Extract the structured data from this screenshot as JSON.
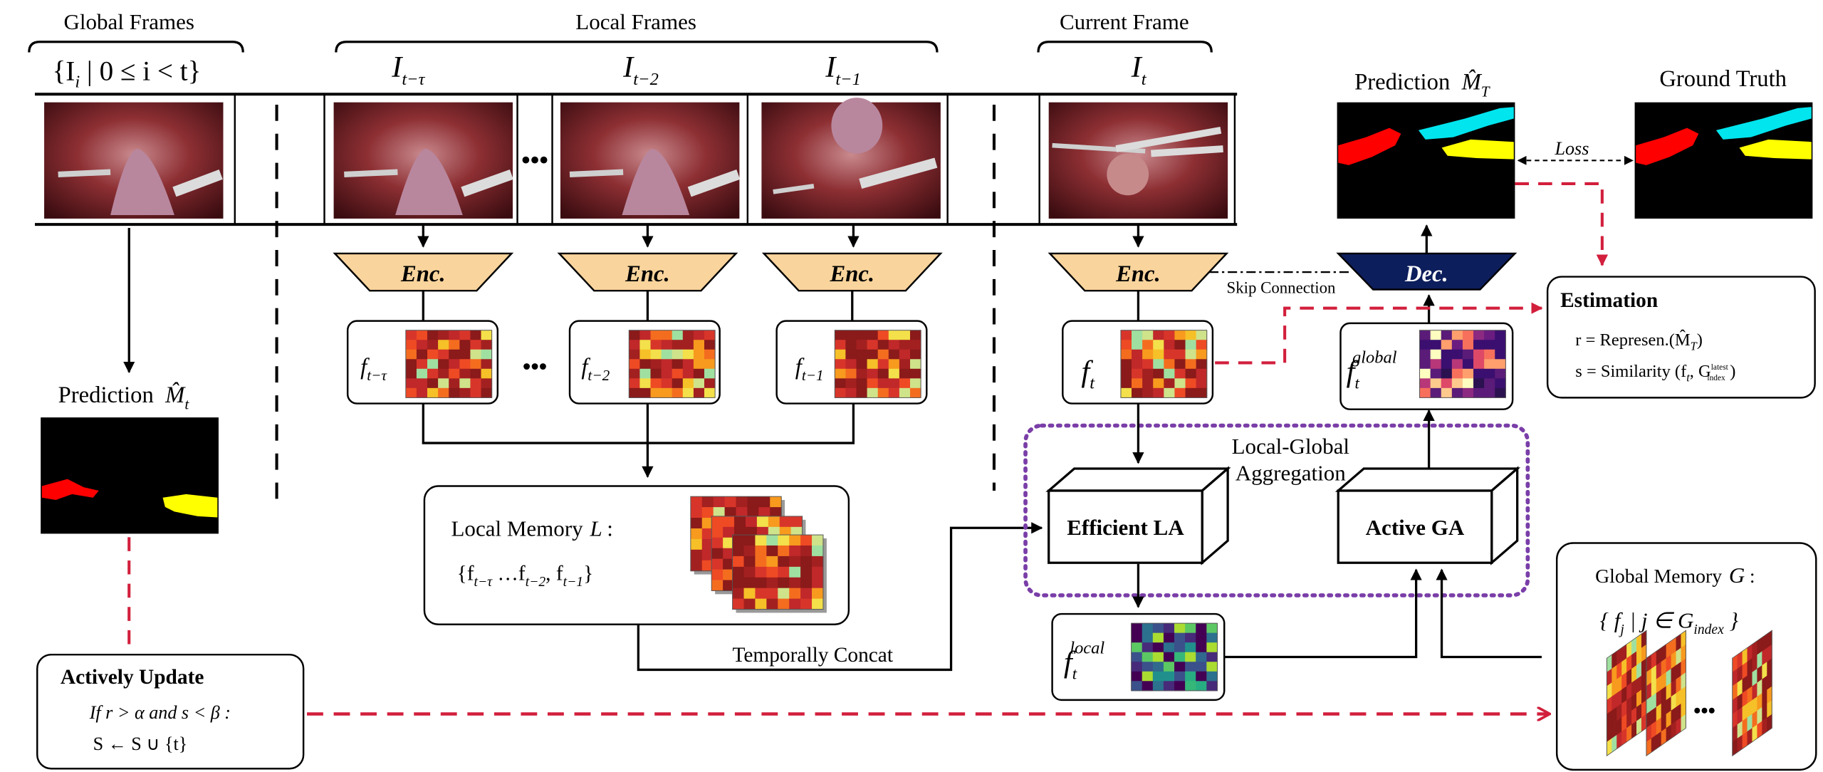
{
  "headers": {
    "global": "Global Frames",
    "local": "Local Frames",
    "current": "Current Frame",
    "prediction_top": "Prediction",
    "ground_truth": "Ground Truth"
  },
  "frame_labels": {
    "global": "{I",
    "global_sub": "i",
    "global_rest": " | 0 ≤ i < t}",
    "tau": "I",
    "tau_sub": "t−τ",
    "t2": "I",
    "t2_sub": "t−2",
    "t1": "I",
    "t1_sub": "t−1",
    "t": "I",
    "t_sub": "t"
  },
  "prediction_symbol_top": "M̂",
  "prediction_symbol_top_sub": "T",
  "loss": "Loss",
  "encoder_label": "Enc.",
  "decoder_label": "Dec.",
  "skip_connection": "Skip Connection",
  "features": {
    "tau": "f",
    "tau_sub": "t−τ",
    "t2": "f",
    "t2_sub": "t−2",
    "t1": "f",
    "t1_sub": "t−1",
    "t": "f",
    "t_sub": "t",
    "global": "f",
    "global_sub": "t",
    "global_sup": "global",
    "local": "f",
    "local_sub": "t",
    "local_sup": "local"
  },
  "ellipsis": "•••",
  "left_prediction": {
    "label": "Prediction",
    "symbol": "M̂",
    "symbol_sub": "t"
  },
  "local_memory": {
    "title": "Local Memory",
    "symbol": "L",
    "colon": ":",
    "set": "{f",
    "set_a": "t−τ",
    "set_mid": " …f",
    "set_b": "t−2",
    "set_comma": ", f",
    "set_c": "t−1",
    "set_end": "}"
  },
  "temporally_concat": "Temporally Concat",
  "lga": {
    "line1": "Local-Global",
    "line2": "Aggregation"
  },
  "efficient_la": "Efficient LA",
  "active_ga": "Active GA",
  "estimation": {
    "title": "Estimation",
    "r_line": "r = Represen.(M̂",
    "r_sub": "T",
    "r_end": ")",
    "s_line": "s = Similarity (f",
    "s_sub": "t",
    "s_mid": ", G",
    "s_sup": "latest",
    "s_sub2": "index",
    "s_end": ")"
  },
  "global_memory": {
    "title": "Global Memory",
    "symbol": "G",
    "colon": ":",
    "set": "{ f",
    "set_sub": "j",
    "set_mid": " | j ∈ G",
    "set_sub2": "index",
    "set_end": " }"
  },
  "actively_update": {
    "title": "Actively Update",
    "cond": "If r > α and s < β :",
    "assign": "S ← S ∪ {t}"
  },
  "colors": {
    "encoder": "#f9d49c",
    "decoder": "#0d1e5c",
    "dashed_red": "#d21f3c",
    "lga_border": "#7a3ea8",
    "mask_red": "#ff0000",
    "mask_cyan": "#00e5ee",
    "mask_yellow": "#ffff00"
  }
}
